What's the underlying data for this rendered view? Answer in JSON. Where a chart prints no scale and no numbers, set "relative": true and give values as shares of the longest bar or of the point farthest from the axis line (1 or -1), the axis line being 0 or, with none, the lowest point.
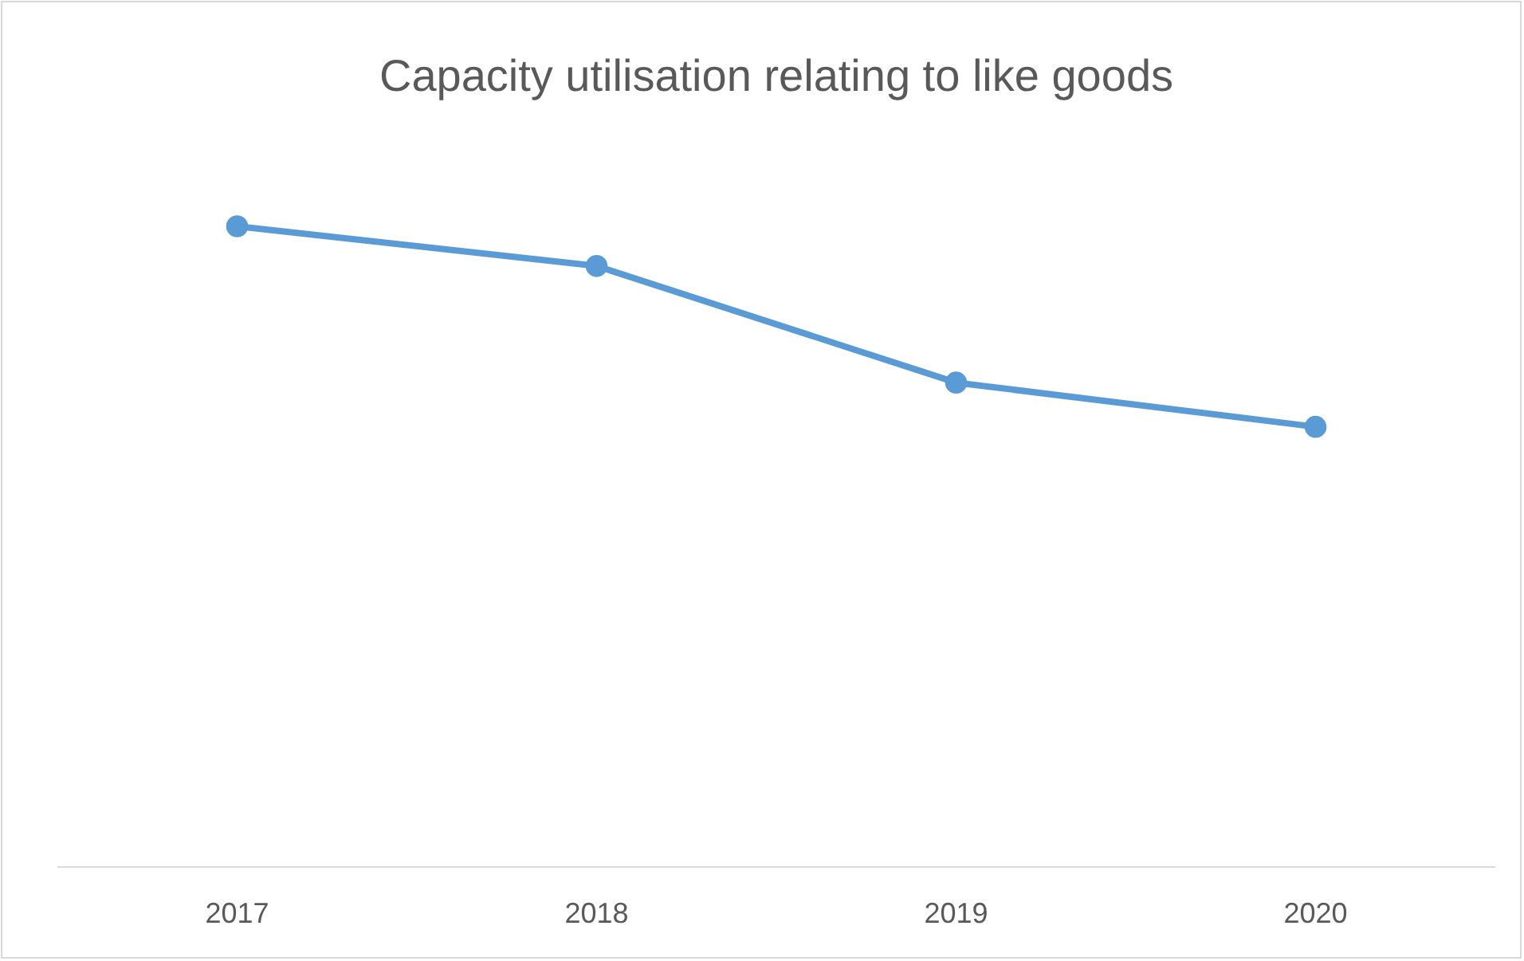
{
  "chart_data": {
    "type": "line",
    "title": "Capacity utilisation relating to like goods",
    "categories": [
      "2017",
      "2018",
      "2019",
      "2020"
    ],
    "relative": true,
    "series": [
      {
        "color": "#5b9bd5",
        "values": [
          1,
          0.938,
          0.756,
          0.687
        ]
      }
    ],
    "marker": "circle",
    "line_style": "solid",
    "grid": false
  }
}
